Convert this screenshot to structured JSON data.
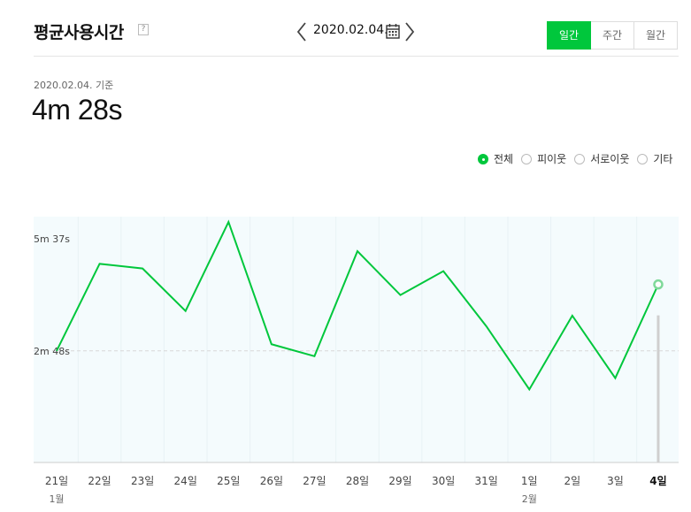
{
  "header": {
    "title": "평균사용시간",
    "help_label": "?",
    "date": "2020.02.04.",
    "prev_icon": "chevron-left-icon",
    "next_icon": "chevron-right-icon",
    "calendar_icon": "calendar-icon",
    "periods": [
      {
        "label": "일간",
        "active": true
      },
      {
        "label": "주간",
        "active": false
      },
      {
        "label": "월간",
        "active": false
      }
    ]
  },
  "summary": {
    "basis": "2020.02.04. 기준",
    "value": "4m 28s"
  },
  "legend": [
    {
      "label": "전체",
      "selected": true
    },
    {
      "label": "피이웃",
      "selected": false
    },
    {
      "label": "서로이웃",
      "selected": false
    },
    {
      "label": "기타",
      "selected": false
    }
  ],
  "colors": {
    "accent": "#00c73c",
    "plot_bg": "#f4fbfd"
  },
  "chart_data": {
    "type": "line",
    "title": "",
    "xlabel": "",
    "ylabel": "",
    "categories": [
      "21일",
      "22일",
      "23일",
      "24일",
      "25일",
      "26일",
      "27일",
      "28일",
      "29일",
      "30일",
      "31일",
      "1일",
      "2일",
      "3일",
      "4일"
    ],
    "month_labels": [
      {
        "index": 0,
        "label": "1월"
      },
      {
        "index": 11,
        "label": "2월"
      }
    ],
    "highlight_index": 14,
    "y_ticks": [
      {
        "seconds": 168,
        "label": "2m 48s"
      },
      {
        "seconds": 337,
        "label": "5m 37s"
      }
    ],
    "ylim": [
      0,
      370
    ],
    "series": [
      {
        "values": [
          168,
          299,
          292,
          228,
          362,
          178,
          160,
          318,
          252,
          288,
          205,
          110,
          221,
          127,
          268
        ]
      }
    ]
  }
}
